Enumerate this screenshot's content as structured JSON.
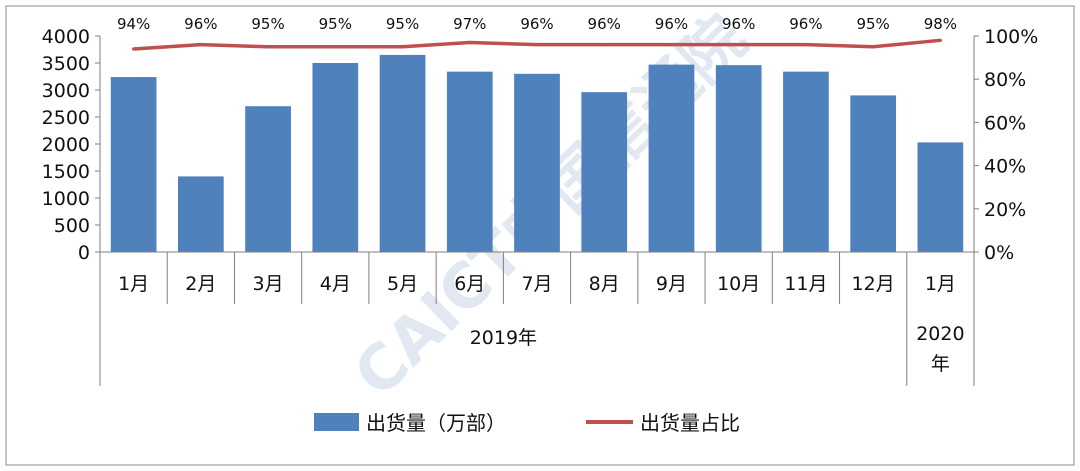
{
  "chart_data": {
    "type": "bar",
    "categories": [
      "1月",
      "2月",
      "3月",
      "4月",
      "5月",
      "6月",
      "7月",
      "8月",
      "9月",
      "10月",
      "11月",
      "12月",
      "1月"
    ],
    "groups": [
      {
        "label": "2019年",
        "count": 12
      },
      {
        "label": "2020年",
        "count": 1
      }
    ],
    "series": [
      {
        "name": "出货量（万部）",
        "type": "bar",
        "axis": "left",
        "color": "#4f81bd",
        "values": [
          3240,
          1400,
          2700,
          3500,
          3650,
          3340,
          3300,
          2960,
          3470,
          3460,
          3340,
          2900,
          2030
        ]
      },
      {
        "name": "出货量占比",
        "type": "line",
        "axis": "right",
        "color": "#c0504d",
        "values": [
          94,
          96,
          95,
          95,
          95,
          97,
          96,
          96,
          96,
          96,
          96,
          95,
          98
        ],
        "labels": [
          "94%",
          "96%",
          "95%",
          "95%",
          "95%",
          "97%",
          "96%",
          "96%",
          "96%",
          "96%",
          "96%",
          "95%",
          "98%"
        ]
      }
    ],
    "y_left": {
      "ticks": [
        "0",
        "500",
        "1000",
        "1500",
        "2000",
        "2500",
        "3000",
        "3500",
        "4000"
      ],
      "ylim": [
        0,
        4000
      ]
    },
    "y_right": {
      "ticks": [
        "0%",
        "20%",
        "40%",
        "60%",
        "80%",
        "100%"
      ],
      "ylim": [
        0,
        100
      ]
    },
    "legend_position": "bottom",
    "watermark": "CAICT中国信通院"
  }
}
